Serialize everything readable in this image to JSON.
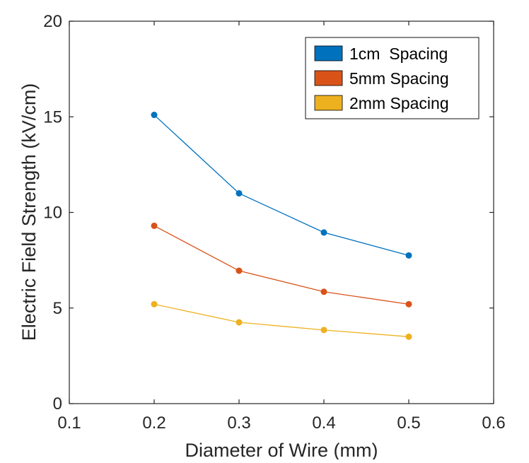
{
  "chart_data": {
    "type": "line",
    "title": "",
    "xlabel": "Diameter of Wire (mm)",
    "ylabel": "Electric Field Strength (kV/cm)",
    "xlim": [
      0.1,
      0.6
    ],
    "ylim": [
      0,
      20
    ],
    "xticks": [
      "0.1",
      "0.2",
      "0.3",
      "0.4",
      "0.5",
      "0.6"
    ],
    "yticks": [
      "0",
      "5",
      "10",
      "15",
      "20"
    ],
    "grid": false,
    "legend_position": "top-right",
    "x": [
      0.2,
      0.3,
      0.4,
      0.5
    ],
    "series": [
      {
        "name": "1cm  Spacing",
        "color": "#0072BD",
        "values": [
          15.1,
          11.0,
          8.95,
          7.75
        ]
      },
      {
        "name": "5mm Spacing",
        "color": "#D95319",
        "values": [
          9.3,
          6.95,
          5.85,
          5.2
        ]
      },
      {
        "name": "2mm Spacing",
        "color": "#EDB120",
        "values": [
          5.2,
          4.25,
          3.85,
          3.5
        ]
      }
    ]
  }
}
